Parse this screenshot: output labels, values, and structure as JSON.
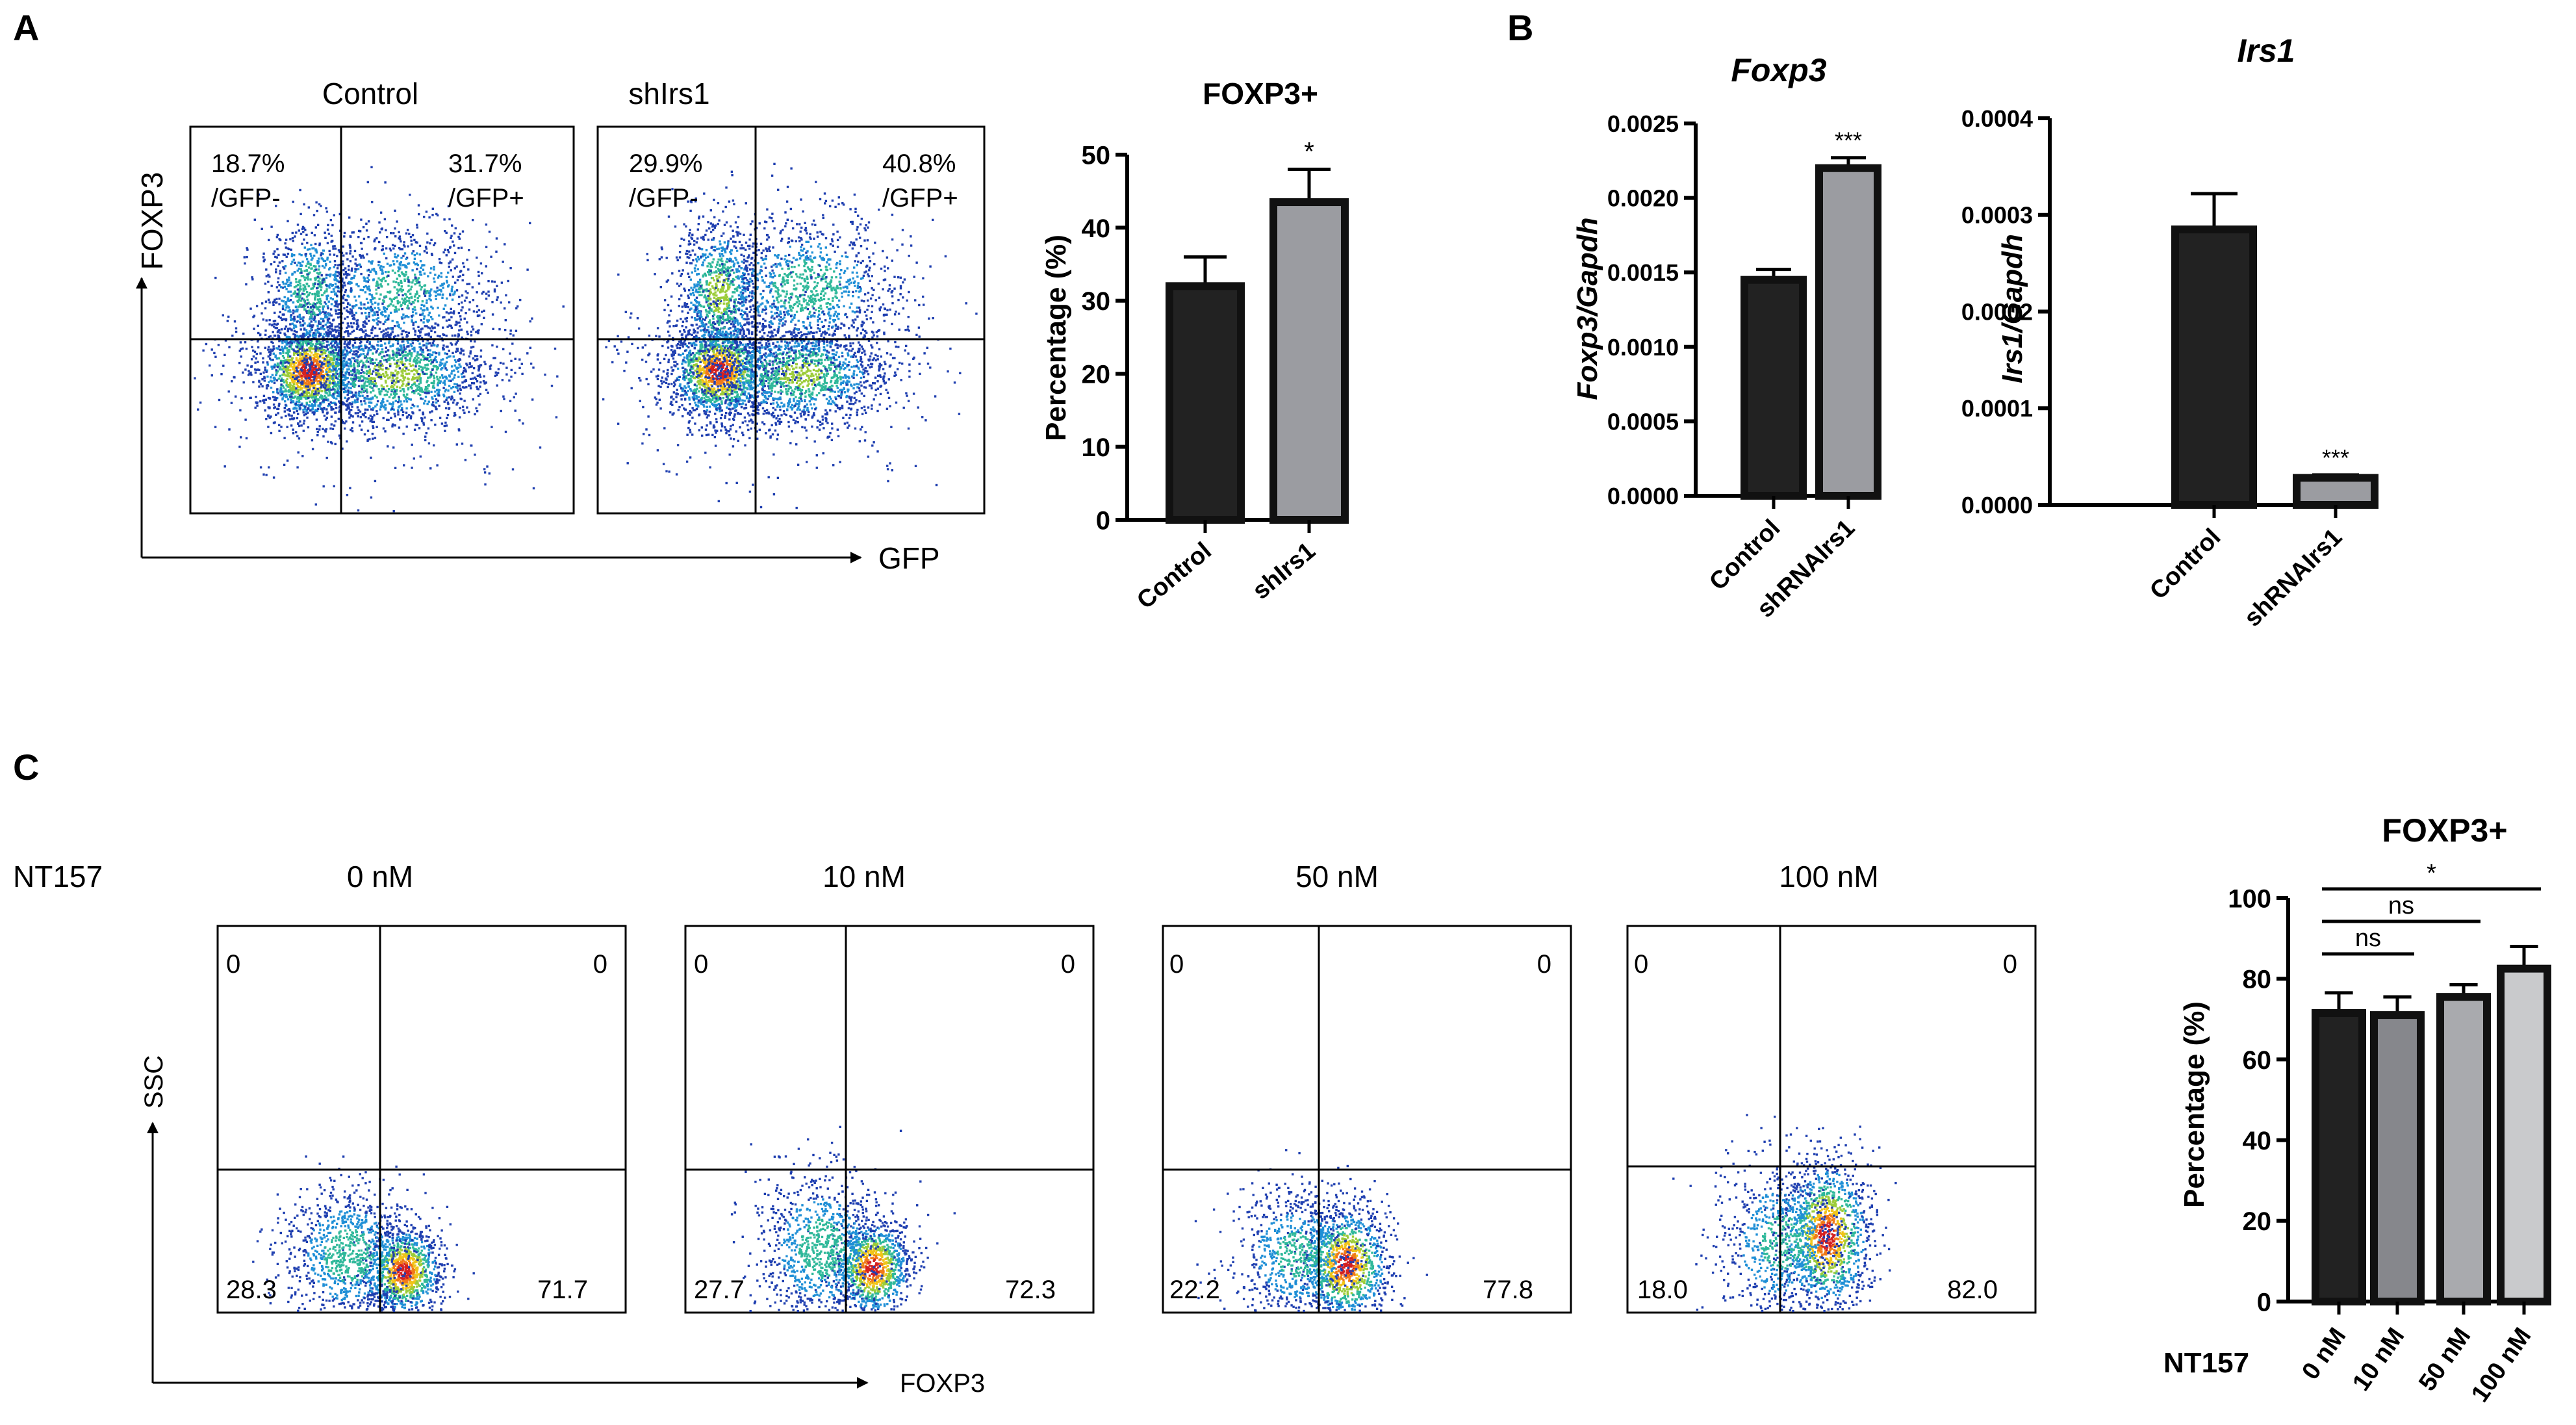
{
  "panels": {
    "a": {
      "label": "A",
      "flow": {
        "y_label": "FOXP3",
        "x_label": "GFP",
        "plots": [
          {
            "title": "Control",
            "q_ul": [
              "18.7%",
              "/GFP-"
            ],
            "q_ur": [
              "31.7%",
              "/GFP+"
            ]
          },
          {
            "title": "shIrs1",
            "q_ul": [
              "29.9%",
              "/GFP-"
            ],
            "q_ur": [
              "40.8%",
              "/GFP+"
            ]
          }
        ]
      }
    },
    "b": {
      "label": "B"
    },
    "c": {
      "label": "C",
      "treatment_label": "NT157",
      "flow": {
        "y_label": "SSC",
        "x_label": "FOXP3",
        "plots": [
          {
            "title": "0 nM",
            "ul": "0",
            "ur": "0",
            "ll": "28.3",
            "lr": "71.7"
          },
          {
            "title": "10 nM",
            "ul": "0",
            "ur": "0",
            "ll": "27.7",
            "lr": "72.3"
          },
          {
            "title": "50 nM",
            "ul": "0",
            "ur": "0",
            "ll": "22.2",
            "lr": "77.8"
          },
          {
            "title": "100 nM",
            "ul": "0",
            "ur": "0",
            "ll": "18.0",
            "lr": "82.0"
          }
        ]
      }
    }
  },
  "chart_data": [
    {
      "type": "bar",
      "panel": "A",
      "title": "FOXP3+",
      "ylabel": "Percentage (%)",
      "categories": [
        "Control",
        "shIrs1"
      ],
      "values": [
        32,
        43.5
      ],
      "errors": [
        4,
        4.5
      ],
      "ylim": [
        0,
        50
      ],
      "yticks": [
        "0",
        "10",
        "20",
        "30",
        "40",
        "50"
      ],
      "significance": [
        "",
        "*"
      ],
      "colors": [
        "#222222",
        "#9b9ca1"
      ]
    },
    {
      "type": "bar",
      "panel": "B",
      "title": "Foxp3",
      "ylabel": "Foxp3/Gapdh",
      "categories": [
        "Control",
        "shRNAIrs1"
      ],
      "values": [
        0.00145,
        0.0022
      ],
      "errors": [
        7e-05,
        7e-05
      ],
      "ylim": [
        0,
        0.0025
      ],
      "yticks": [
        "0.0000",
        "0.0005",
        "0.0010",
        "0.0015",
        "0.0020",
        "0.0025"
      ],
      "significance": [
        "",
        "***"
      ],
      "colors": [
        "#222222",
        "#9b9ca1"
      ]
    },
    {
      "type": "bar",
      "panel": "B",
      "title": "Irs1",
      "ylabel": "Irs1/Gapdh",
      "categories": [
        "Control",
        "shRNAIrs1"
      ],
      "values": [
        0.000285,
        2.8e-05
      ],
      "errors": [
        3.7e-05,
        3e-06
      ],
      "ylim": [
        0,
        0.0004
      ],
      "yticks": [
        "0.0000",
        "0.0001",
        "0.0002",
        "0.0003",
        "0.0004"
      ],
      "significance": [
        "",
        "***"
      ],
      "colors": [
        "#222222",
        "#9b9ca1"
      ]
    },
    {
      "type": "bar",
      "panel": "C",
      "title": "FOXP3+",
      "ylabel": "Percentage (%)",
      "xlabel": "NT157",
      "categories": [
        "0 nM",
        "10 nM",
        "50 nM",
        "100 nM"
      ],
      "values": [
        71.5,
        71,
        75.5,
        82.5
      ],
      "errors": [
        5,
        4.5,
        3,
        5.5
      ],
      "ylim": [
        0,
        100
      ],
      "yticks": [
        "0",
        "20",
        "40",
        "60",
        "80",
        "100"
      ],
      "colors": [
        "#222222",
        "#86878c",
        "#a9aaae",
        "#c9cacc"
      ],
      "comparisons": [
        {
          "from": 0,
          "to": 1,
          "label": "ns"
        },
        {
          "from": 0,
          "to": 2,
          "label": "ns"
        },
        {
          "from": 0,
          "to": 3,
          "label": "*"
        }
      ]
    }
  ]
}
